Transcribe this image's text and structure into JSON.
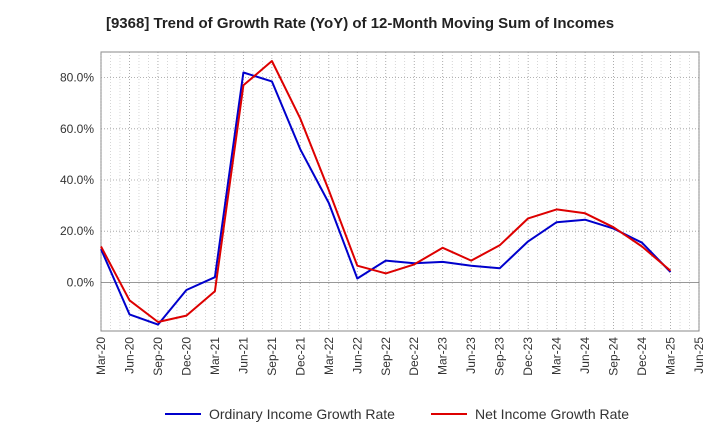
{
  "chart_data": {
    "type": "line",
    "title": "[9368]  Trend of Growth Rate (YoY) of 12-Month Moving Sum of Incomes",
    "xlabel": "",
    "ylabel": "",
    "x": [
      "Mar-20",
      "Jun-20",
      "Sep-20",
      "Dec-20",
      "Mar-21",
      "Jun-21",
      "Sep-21",
      "Dec-21",
      "Mar-22",
      "Jun-22",
      "Sep-22",
      "Dec-22",
      "Mar-23",
      "Jun-23",
      "Sep-23",
      "Dec-23",
      "Mar-24",
      "Jun-24",
      "Sep-24",
      "Dec-24",
      "Mar-25",
      "Jun-25"
    ],
    "ylim": [
      -19,
      90
    ],
    "yticks": [
      0,
      20,
      40,
      60,
      80
    ],
    "ytick_labels": [
      "0.0%",
      "20.0%",
      "40.0%",
      "60.0%",
      "80.0%"
    ],
    "grid": true,
    "legend_position": "bottom",
    "series": [
      {
        "name": "Ordinary Income Growth Rate",
        "color": "#0000cc",
        "values": [
          13,
          -12.5,
          -16.5,
          -3,
          2,
          82,
          78.5,
          52,
          31,
          1.5,
          8.5,
          7.5,
          8,
          6.5,
          5.5,
          16,
          23.5,
          24.5,
          21,
          15.5,
          4,
          null
        ]
      },
      {
        "name": "Net Income Growth Rate",
        "color": "#dd0000",
        "values": [
          14,
          -7,
          -15.5,
          -13,
          -3.5,
          77,
          86.5,
          64,
          36,
          6.5,
          3.5,
          7,
          13.5,
          8.5,
          14.5,
          25,
          28.5,
          27,
          21.5,
          14,
          4.5,
          null
        ]
      }
    ]
  }
}
